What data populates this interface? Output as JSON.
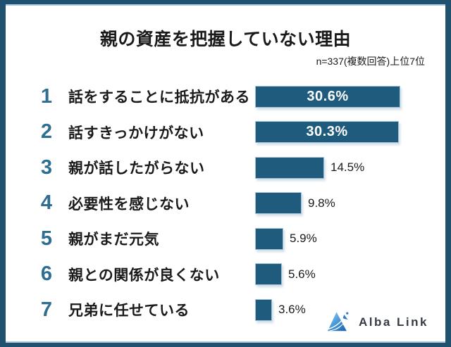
{
  "chart_data": {
    "type": "bar",
    "orientation": "horizontal",
    "title": "親の資産を把握していない理由",
    "subtitle": "n=337(複数回答)上位7位",
    "ranks": [
      1,
      2,
      3,
      4,
      5,
      6,
      7
    ],
    "categories": [
      "話をすることに抵抗がある",
      "話すきっかけがない",
      "親が話したがらない",
      "必要性を感じない",
      "親がまだ元気",
      "親との関係が良くない",
      "兄弟に任せている"
    ],
    "values": [
      30.6,
      30.3,
      14.5,
      9.8,
      5.9,
      5.6,
      3.6
    ],
    "value_labels": [
      "30.6%",
      "30.3%",
      "14.5%",
      "9.8%",
      "5.9%",
      "5.6%",
      "3.6%"
    ],
    "value_label_positions": [
      "inside",
      "inside",
      "outside",
      "outside",
      "outside",
      "outside",
      "outside"
    ],
    "xlim": [
      0,
      30.6
    ],
    "grid": false,
    "legend": null
  },
  "colors": {
    "bar_fill": "#1F5B7C",
    "frame_border": "#20516F",
    "accent_line": "#A8C6DE",
    "rank_number": "#2D6E91",
    "inside_value_label": "#FFFFFF",
    "text": "#1A1A1A"
  },
  "logo": {
    "text": "Alba Link"
  }
}
